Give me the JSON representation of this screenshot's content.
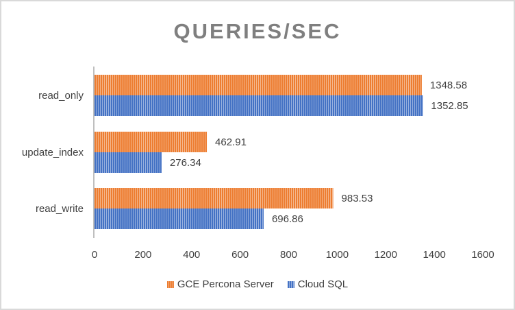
{
  "chart_data": {
    "type": "bar",
    "orientation": "horizontal",
    "title": "QUERIES/SEC",
    "categories": [
      "read_only",
      "update_index",
      "read_write"
    ],
    "series": [
      {
        "name": "GCE Percona Server",
        "values": [
          1348.58,
          462.91,
          983.53
        ],
        "color": "#ed7d31"
      },
      {
        "name": "Cloud SQL",
        "values": [
          1352.85,
          276.34,
          696.86
        ],
        "color": "#4472c4"
      }
    ],
    "data_labels": [
      [
        "1348.58",
        "462.91",
        "983.53"
      ],
      [
        "1352.85",
        "276.34",
        "696.86"
      ]
    ],
    "xlim": [
      0,
      1600
    ],
    "xticks": [
      "0",
      "200",
      "400",
      "600",
      "800",
      "1000",
      "1200",
      "1400",
      "1600"
    ],
    "grid": false,
    "legend_position": "bottom",
    "bar_fill": "vertical-stripes"
  }
}
